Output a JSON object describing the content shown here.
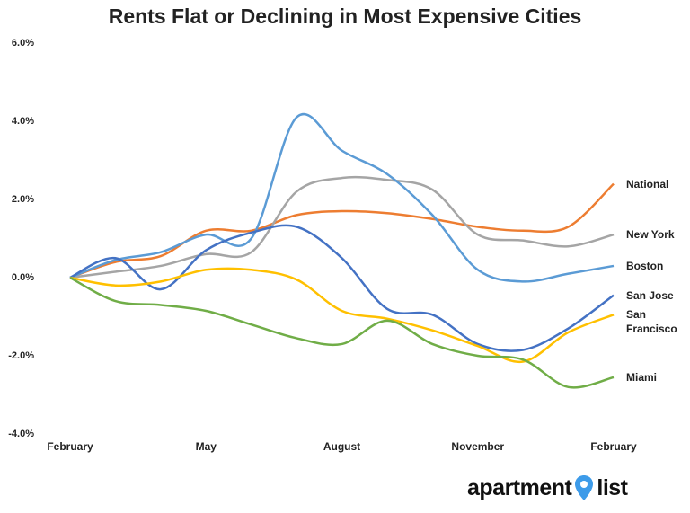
{
  "chart_data": {
    "type": "line",
    "title": "Rents Flat or Declining in Most Expensive Cities",
    "categories": [
      "February",
      null,
      null,
      "May",
      null,
      null,
      "August",
      null,
      null,
      "November",
      null,
      null,
      "February"
    ],
    "series": [
      {
        "name": "National",
        "color": "#ED7D31",
        "values": [
          0,
          0.4,
          0.55,
          1.2,
          1.2,
          1.6,
          1.7,
          1.65,
          1.5,
          1.3,
          1.2,
          1.3,
          2.4
        ]
      },
      {
        "name": "New York",
        "color": "#A5A5A5",
        "values": [
          0,
          0.15,
          0.3,
          0.6,
          0.65,
          2.2,
          2.55,
          2.5,
          2.25,
          1.1,
          0.95,
          0.8,
          1.1
        ]
      },
      {
        "name": "Boston",
        "color": "#5B9BD5",
        "values": [
          0,
          0.45,
          0.65,
          1.1,
          1.0,
          4.1,
          3.25,
          2.65,
          1.6,
          0.2,
          -0.1,
          0.1,
          0.3
        ]
      },
      {
        "name": "San Jose",
        "color": "#4472C4",
        "values": [
          0,
          0.5,
          -0.3,
          0.7,
          1.15,
          1.3,
          0.5,
          -0.8,
          -0.95,
          -1.7,
          -1.85,
          -1.3,
          -0.45
        ]
      },
      {
        "name": "San Francisco",
        "color": "#FFC000",
        "values": [
          0,
          -0.2,
          -0.1,
          0.2,
          0.2,
          -0.05,
          -0.85,
          -1.05,
          -1.35,
          -1.75,
          -2.15,
          -1.4,
          -0.95
        ]
      },
      {
        "name": "Miami",
        "color": "#70AD47",
        "values": [
          0,
          -0.6,
          -0.7,
          -0.85,
          -1.2,
          -1.55,
          -1.7,
          -1.1,
          -1.7,
          -2.0,
          -2.1,
          -2.8,
          -2.55
        ]
      }
    ],
    "ylim": [
      -4,
      6
    ],
    "yticks": [
      {
        "value": -4,
        "label": "-4.0%"
      },
      {
        "value": -2,
        "label": "-2.0%"
      },
      {
        "value": 0,
        "label": "0.0%"
      },
      {
        "value": 2,
        "label": "2.0%"
      },
      {
        "value": 4,
        "label": "4.0%"
      },
      {
        "value": 6,
        "label": "6.0%"
      }
    ],
    "grid": false
  },
  "logo": {
    "left": "apartment",
    "right": "list"
  }
}
